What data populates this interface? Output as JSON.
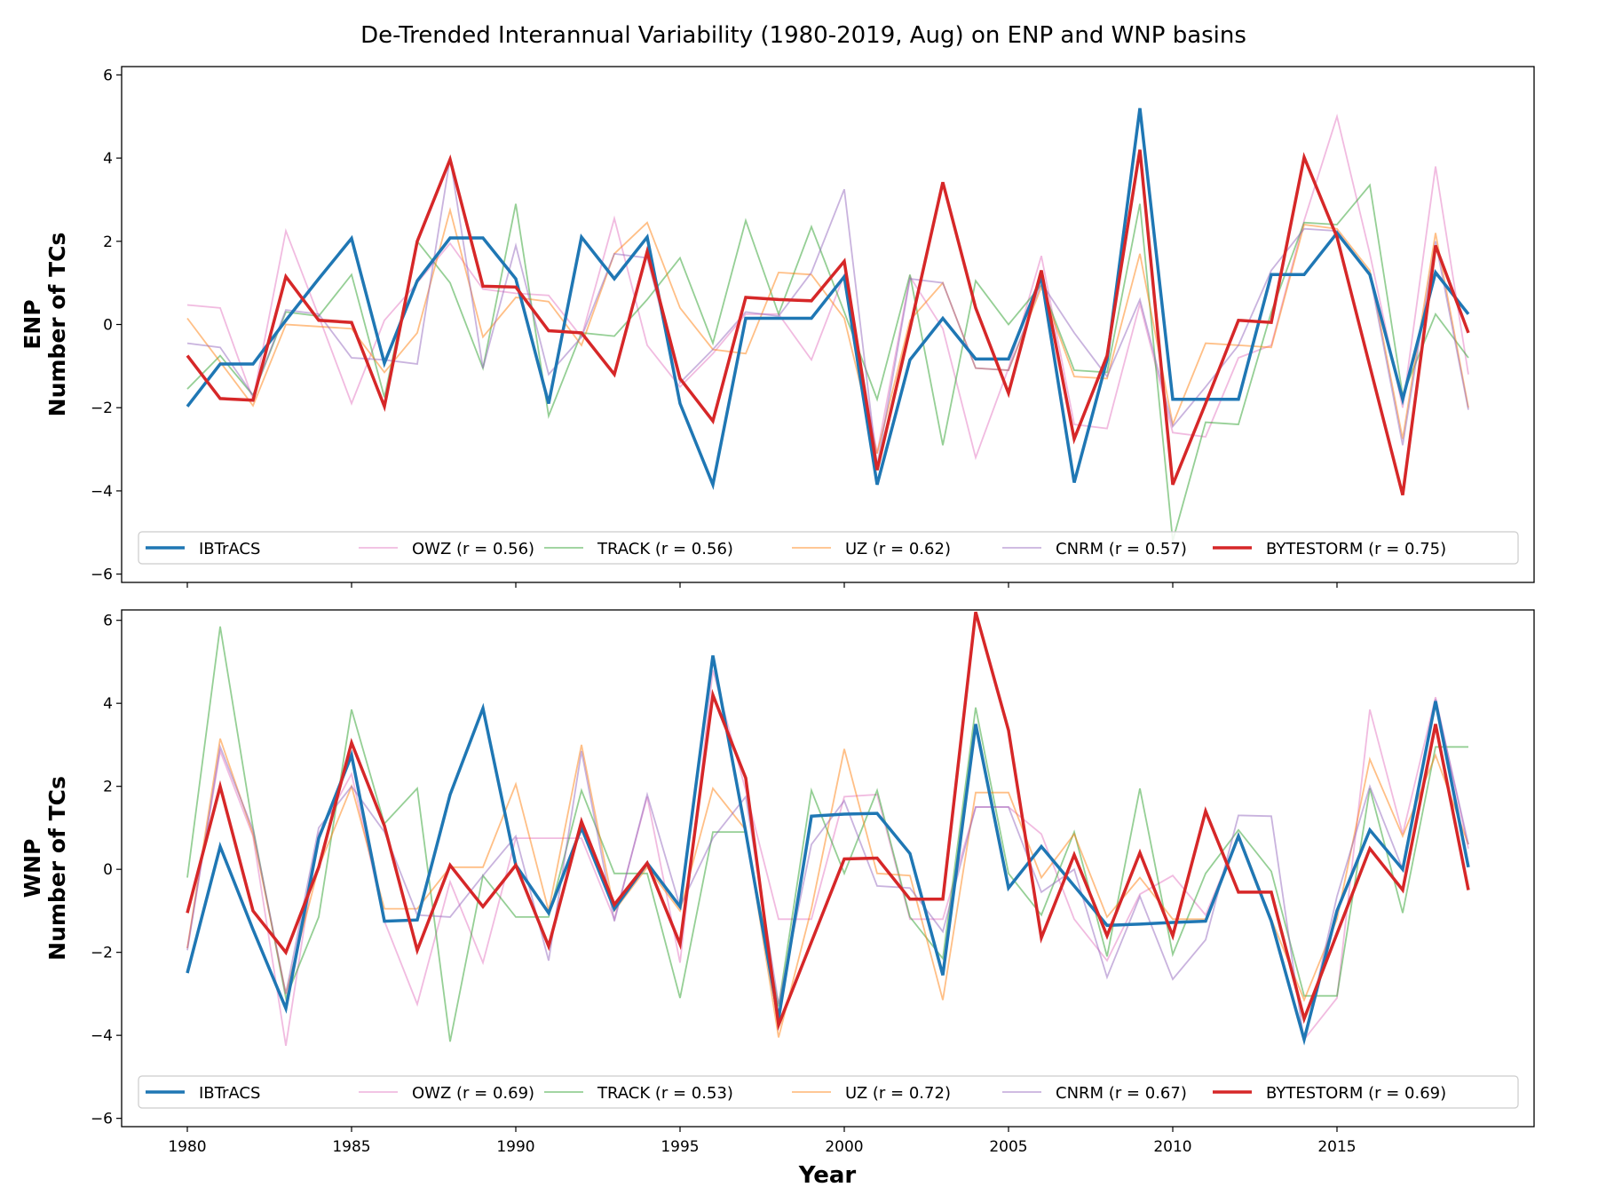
{
  "chart_data": {
    "title": "De-Trended Interannual Variability (1980-2019, Aug) on ENP and WNP basins",
    "xlabel": "Year",
    "xlim": [
      1978,
      2021
    ],
    "xticks": [
      1980,
      1985,
      1990,
      1995,
      2000,
      2005,
      2010,
      2015
    ],
    "colors": {
      "IBTrACS": "#1f77b4",
      "OWZ": "#e377c2",
      "TRACK": "#2ca02c",
      "UZ": "#ff7f0e",
      "CNRM": "#9467bd",
      "BYTESTORM": "#d62728"
    },
    "legend_placement": "lower center (inside)",
    "grid": false,
    "x": [
      1980,
      1981,
      1982,
      1983,
      1984,
      1985,
      1986,
      1987,
      1988,
      1989,
      1990,
      1991,
      1992,
      1993,
      1994,
      1995,
      1996,
      1997,
      1998,
      1999,
      2000,
      2001,
      2002,
      2003,
      2004,
      2005,
      2006,
      2007,
      2008,
      2009,
      2010,
      2011,
      2012,
      2013,
      2014,
      2015,
      2016,
      2017,
      2018,
      2019
    ],
    "panels": [
      {
        "type": "line",
        "ylabel_line1": "ENP",
        "ylabel_line2": "Number of TCs",
        "ylim": [
          -6.2,
          6.2
        ],
        "yticks": [
          -6,
          -4,
          -2,
          0,
          2,
          4,
          6
        ],
        "series": [
          {
            "name": "IBTrACS",
            "key": "IBTrACS",
            "values": [
              -1.97,
              -0.95,
              -0.95,
              0.1,
              1.1,
              2.07,
              -0.93,
              1.05,
              2.08,
              2.08,
              1.1,
              -1.9,
              2.1,
              1.1,
              2.1,
              -1.9,
              -3.85,
              0.15,
              0.15,
              0.15,
              1.15,
              -3.85,
              -0.85,
              0.15,
              -0.83,
              -0.83,
              1.15,
              -3.8,
              -0.85,
              5.2,
              -1.8,
              -1.8,
              -1.8,
              1.2,
              1.2,
              2.2,
              1.2,
              -1.8,
              1.25,
              0.25
            ]
          },
          {
            "name": "OWZ (r = 0.56)",
            "key": "OWZ",
            "values": [
              0.47,
              0.4,
              -1.8,
              2.25,
              0.2,
              -1.9,
              0.1,
              1.0,
              1.95,
              0.85,
              0.75,
              0.7,
              -0.3,
              2.55,
              -0.5,
              -1.5,
              -0.7,
              0.25,
              0.25,
              -0.85,
              1.2,
              -3.1,
              1.15,
              -0.1,
              -3.2,
              -1.05,
              1.65,
              -2.4,
              -2.5,
              0.5,
              -2.6,
              -2.7,
              -0.8,
              -0.5,
              2.5,
              5.0,
              1.7,
              -2.0,
              3.8,
              -1.2
            ]
          },
          {
            "name": "TRACK (r = 0.56)",
            "key": "TRACK",
            "values": [
              -1.55,
              -0.75,
              -1.7,
              0.3,
              0.2,
              1.2,
              -1.75,
              2.0,
              1.0,
              -1.05,
              2.9,
              -2.2,
              -0.2,
              -0.28,
              0.6,
              1.6,
              -0.45,
              2.5,
              0.25,
              2.35,
              0.3,
              -1.8,
              1.2,
              -2.9,
              1.05,
              0.0,
              0.95,
              -1.1,
              -1.15,
              2.9,
              -5.2,
              -2.35,
              -2.4,
              0.3,
              2.45,
              2.4,
              3.35,
              -1.7,
              0.25,
              -0.8
            ]
          },
          {
            "name": "UZ (r = 0.62)",
            "key": "UZ",
            "values": [
              0.15,
              -0.9,
              -1.95,
              0.0,
              -0.05,
              -0.1,
              -1.15,
              -0.2,
              2.75,
              -0.3,
              0.65,
              0.55,
              -0.5,
              1.7,
              2.45,
              0.4,
              -0.6,
              -0.7,
              1.25,
              1.2,
              0.15,
              -3.1,
              0.1,
              1.0,
              -1.05,
              -1.1,
              0.9,
              -1.25,
              -1.3,
              1.7,
              -2.4,
              -0.45,
              -0.5,
              -0.55,
              2.4,
              2.3,
              1.3,
              -2.75,
              2.2,
              -2.0
            ]
          },
          {
            "name": "CNRM (r = 0.57)",
            "key": "CNRM",
            "values": [
              -0.45,
              -0.55,
              -1.7,
              0.35,
              0.25,
              -0.8,
              -0.85,
              -0.95,
              4.0,
              -1.05,
              1.9,
              -1.2,
              -0.3,
              1.7,
              1.6,
              -1.4,
              -0.6,
              0.3,
              0.2,
              1.25,
              3.25,
              -3.4,
              1.1,
              1.0,
              -1.05,
              -1.1,
              1.0,
              -0.2,
              -1.25,
              0.6,
              -2.45,
              -1.5,
              -0.5,
              1.3,
              2.3,
              2.25,
              1.2,
              -2.9,
              2.0,
              -2.05
            ]
          },
          {
            "name": "BYTESTORM (r = 0.75)",
            "key": "BYTESTORM",
            "values": [
              -0.75,
              -1.78,
              -1.82,
              1.15,
              0.1,
              0.05,
              -1.97,
              2.0,
              3.97,
              0.92,
              0.9,
              -0.15,
              -0.2,
              -1.2,
              1.75,
              -1.3,
              -2.32,
              0.65,
              0.6,
              0.57,
              1.52,
              -3.5,
              -0.1,
              3.42,
              0.4,
              -1.65,
              1.3,
              -2.75,
              -0.75,
              4.2,
              -3.85,
              -1.9,
              0.1,
              0.05,
              4.02,
              2.1,
              -1.0,
              -4.1,
              1.9,
              -0.2
            ]
          }
        ]
      },
      {
        "type": "line",
        "ylabel_line1": "WNP",
        "ylabel_line2": "Number of TCs",
        "ylim": [
          -6.2,
          6.25
        ],
        "yticks": [
          -6,
          -4,
          -2,
          0,
          2,
          4,
          6
        ],
        "series": [
          {
            "name": "IBTrACS",
            "key": "IBTrACS",
            "values": [
              -2.5,
              0.55,
              -1.45,
              -3.35,
              0.75,
              2.75,
              -1.25,
              -1.22,
              1.8,
              3.88,
              0.1,
              -1.05,
              1.0,
              -0.95,
              0.15,
              -0.9,
              5.15,
              0.9,
              -3.6,
              1.28,
              1.33,
              1.35,
              0.38,
              -2.55,
              3.5,
              -0.45,
              0.55,
              -0.4,
              -1.35,
              -1.32,
              -1.28,
              -1.25,
              0.8,
              -1.25,
              -4.1,
              -1.0,
              0.95,
              0.0,
              4.05,
              0.05
            ]
          },
          {
            "name": "OWZ (r = 0.69)",
            "key": "OWZ",
            "values": [
              -1.9,
              2.85,
              0.8,
              -4.25,
              0.85,
              2.3,
              -1.25,
              -3.25,
              -0.3,
              -2.25,
              0.75,
              0.75,
              0.75,
              -1.2,
              1.75,
              -2.25,
              4.8,
              1.9,
              -1.2,
              -1.2,
              1.75,
              1.8,
              -1.2,
              -1.2,
              1.5,
              1.5,
              0.85,
              -1.2,
              -2.2,
              -0.6,
              -0.15,
              -1.1,
              0.8,
              -1.2,
              -4.1,
              -3.1,
              3.85,
              0.85,
              4.15,
              0.5
            ]
          },
          {
            "name": "TRACK (r = 0.53)",
            "key": "TRACK",
            "values": [
              -0.2,
              5.85,
              1.0,
              -3.1,
              -1.15,
              3.85,
              1.1,
              1.95,
              -4.15,
              -0.15,
              -1.15,
              -1.15,
              1.9,
              -0.1,
              -0.1,
              -3.1,
              0.9,
              0.9,
              -3.3,
              1.9,
              -0.1,
              1.9,
              -1.15,
              -2.15,
              3.9,
              -0.1,
              -1.1,
              0.9,
              -2.1,
              1.95,
              -2.05,
              -0.1,
              0.95,
              -0.05,
              -3.05,
              -3.05,
              1.95,
              -1.05,
              2.95,
              2.95
            ]
          },
          {
            "name": "UZ (r = 0.72)",
            "key": "UZ",
            "values": [
              -1.9,
              3.15,
              0.85,
              -3.0,
              0.05,
              2.0,
              -0.95,
              -0.95,
              0.05,
              0.05,
              2.05,
              -1.0,
              3.0,
              -1.0,
              0.05,
              -1.0,
              1.95,
              0.95,
              -4.05,
              -0.95,
              2.9,
              -0.1,
              -0.15,
              -3.15,
              1.85,
              1.85,
              -0.2,
              0.85,
              -1.15,
              -0.2,
              -1.2,
              -1.2,
              0.85,
              -1.2,
              -3.15,
              -1.2,
              2.65,
              0.8,
              2.75,
              0.6
            ]
          },
          {
            "name": "CNRM (r = 0.67)",
            "key": "CNRM",
            "values": [
              -1.95,
              2.95,
              0.95,
              -3.0,
              1.0,
              2.0,
              0.9,
              -1.1,
              -1.15,
              -0.15,
              0.8,
              -2.2,
              2.85,
              -1.25,
              1.8,
              -0.9,
              0.75,
              1.75,
              -3.25,
              0.6,
              1.65,
              -0.4,
              -0.45,
              -1.5,
              1.5,
              1.5,
              -0.55,
              0.0,
              -2.6,
              -0.65,
              -2.65,
              -1.7,
              1.3,
              1.28,
              -4.15,
              -0.65,
              2.0,
              0.0,
              4.1,
              0.6
            ]
          },
          {
            "name": "BYTESTORM (r = 0.69)",
            "key": "BYTESTORM",
            "values": [
              -1.05,
              2.0,
              -1.0,
              -2.0,
              0.05,
              3.05,
              1.05,
              -1.95,
              0.1,
              -0.9,
              0.1,
              -1.85,
              1.15,
              -0.85,
              0.15,
              -1.8,
              4.2,
              2.2,
              -3.75,
              -1.75,
              0.25,
              0.27,
              -0.72,
              -0.72,
              6.2,
              3.35,
              -1.65,
              0.35,
              -1.6,
              0.4,
              -1.6,
              1.4,
              -0.55,
              -0.55,
              -3.6,
              -1.55,
              0.5,
              -0.5,
              3.5,
              -0.5
            ]
          }
        ]
      }
    ]
  }
}
